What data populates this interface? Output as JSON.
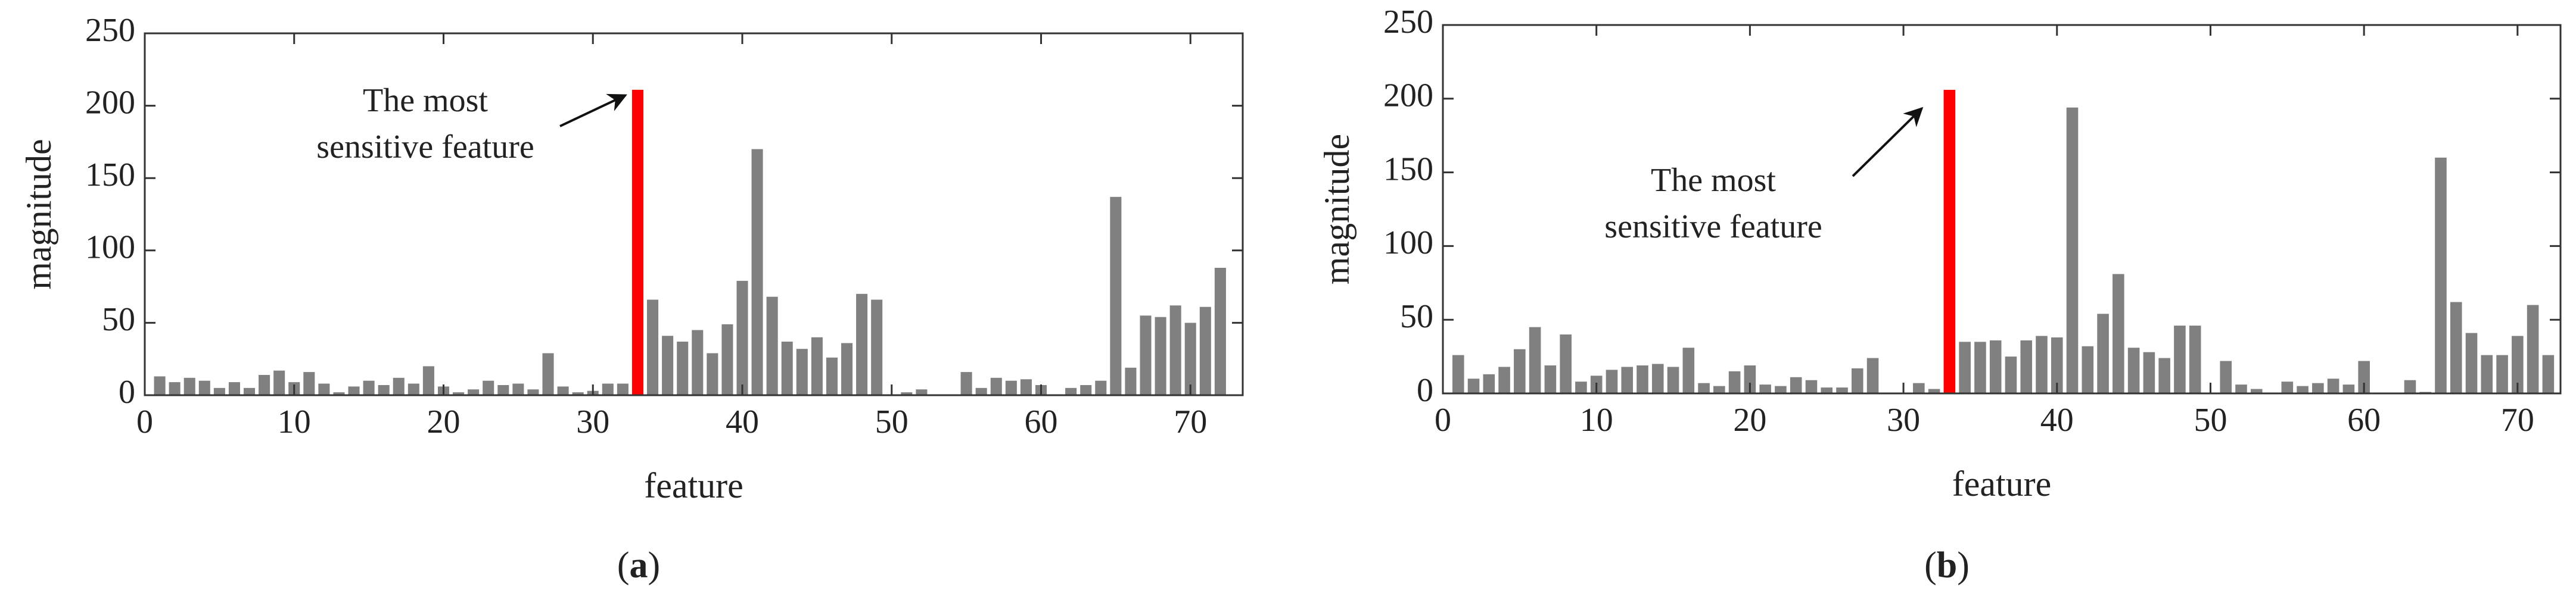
{
  "chart_data": [
    {
      "type": "bar",
      "panel_label": "(a)",
      "xlabel": "feature",
      "ylabel": "magnitude",
      "annotation": [
        "The most",
        "sensitive feature"
      ],
      "x": [
        1,
        2,
        3,
        4,
        5,
        6,
        7,
        8,
        9,
        10,
        11,
        12,
        13,
        14,
        15,
        16,
        17,
        18,
        19,
        20,
        21,
        22,
        23,
        24,
        25,
        26,
        27,
        28,
        29,
        30,
        31,
        32,
        33,
        34,
        35,
        36,
        37,
        38,
        39,
        40,
        41,
        42,
        43,
        44,
        45,
        46,
        47,
        48,
        49,
        50,
        51,
        52,
        53,
        54,
        55,
        56,
        57,
        58,
        59,
        60,
        61,
        62,
        63,
        64,
        65,
        66,
        67,
        68,
        69,
        70,
        71,
        72
      ],
      "values": [
        13,
        9,
        12,
        10,
        5,
        9,
        5,
        14,
        17,
        9,
        16,
        8,
        2,
        6,
        10,
        7,
        12,
        8,
        20,
        6,
        2,
        4,
        10,
        7,
        8,
        4,
        29,
        6,
        2,
        3,
        8,
        8,
        211,
        66,
        41,
        37,
        45,
        29,
        49,
        79,
        170,
        68,
        37,
        32,
        40,
        26,
        36,
        70,
        66,
        0,
        2,
        4,
        0,
        0,
        16,
        5,
        12,
        10,
        11,
        7,
        0,
        5,
        7,
        10,
        137,
        19,
        55,
        54,
        62,
        50,
        61,
        88
      ],
      "color": "#808080",
      "highlight": {
        "x": 33,
        "color": "#ff0000"
      },
      "xlim": [
        0,
        73.5
      ],
      "xticks": [
        0,
        10,
        20,
        30,
        40,
        50,
        60,
        70
      ],
      "ylim": [
        0,
        250
      ],
      "yticks": [
        0,
        50,
        100,
        150,
        200,
        250
      ]
    },
    {
      "type": "bar",
      "panel_label": "(b)",
      "xlabel": "feature",
      "ylabel": "magnitude",
      "annotation": [
        "The most",
        "sensitive feature"
      ],
      "x": [
        1,
        2,
        3,
        4,
        5,
        6,
        7,
        8,
        9,
        10,
        11,
        12,
        13,
        14,
        15,
        16,
        17,
        18,
        19,
        20,
        21,
        22,
        23,
        24,
        25,
        26,
        27,
        28,
        29,
        30,
        31,
        32,
        33,
        34,
        35,
        36,
        37,
        38,
        39,
        40,
        41,
        42,
        43,
        44,
        45,
        46,
        47,
        48,
        49,
        50,
        51,
        52,
        53,
        54,
        55,
        56,
        57,
        58,
        59,
        60,
        61,
        62,
        63,
        64,
        65,
        66,
        67,
        68,
        69,
        70,
        71,
        72
      ],
      "values": [
        26,
        10,
        13,
        18,
        30,
        45,
        19,
        40,
        8,
        12,
        16,
        18,
        19,
        20,
        18,
        31,
        7,
        5,
        15,
        19,
        6,
        5,
        11,
        9,
        4,
        4,
        17,
        24,
        0,
        0,
        7,
        3,
        206,
        35,
        35,
        36,
        25,
        36,
        39,
        38,
        194,
        32,
        54,
        81,
        31,
        28,
        24,
        46,
        46,
        0,
        22,
        6,
        3,
        0,
        8,
        5,
        7,
        10,
        6,
        22,
        0,
        0,
        9,
        1,
        160,
        62,
        41,
        26,
        26,
        39,
        60,
        26
      ],
      "color": "#808080",
      "highlight": {
        "x": 33,
        "color": "#ff0000"
      },
      "xlim": [
        0,
        72.8
      ],
      "xticks": [
        0,
        10,
        20,
        30,
        40,
        50,
        60,
        70
      ],
      "ylim": [
        0,
        250
      ],
      "yticks": [
        0,
        50,
        100,
        150,
        200,
        250
      ]
    }
  ]
}
